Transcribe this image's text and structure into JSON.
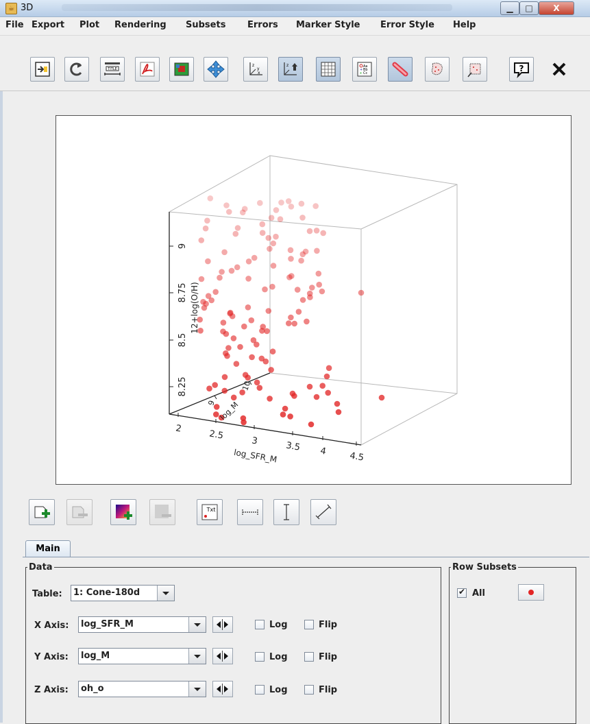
{
  "window": {
    "title": "3D",
    "app_icon": "java-coffee-icon"
  },
  "menu": [
    {
      "label": "File"
    },
    {
      "label": "Export"
    },
    {
      "label": "Plot"
    },
    {
      "label": "Rendering"
    },
    {
      "label": "Subsets"
    },
    {
      "label": "Errors"
    },
    {
      "label": "Marker Style"
    },
    {
      "label": "Error Style"
    },
    {
      "label": "Help"
    }
  ],
  "toolbar_icons": [
    "new-window-icon",
    "replot-icon",
    "title-icon",
    "pdf-export-icon",
    "image-export-icon",
    "rescale-icon",
    "axis-labels-icon",
    "axes-icon",
    "grid-icon",
    "legend-icon",
    "antialias-icon",
    "draw-subset-icon",
    "blob-subset-icon",
    "help-icon",
    "close-icon"
  ],
  "plot": {
    "xlabel": "log_SFR_M",
    "ylabel": "log_M",
    "zlabel": "12+log(O/H)",
    "x_ticks": [
      "2",
      "2.5",
      "3",
      "3.5",
      "4",
      "4.5"
    ],
    "y_ticks": [
      "9",
      "10"
    ],
    "z_ticks": [
      "8.25",
      "8.5",
      "8.75",
      "9"
    ],
    "marker_color": "#e22626"
  },
  "bottom_icons": [
    "add-dataset-icon",
    "remove-dataset-icon",
    "add-auxiliary-icon",
    "remove-auxiliary-icon",
    "text-label-icon",
    "x-range-icon",
    "y-range-icon",
    "xy-range-icon"
  ],
  "tab": {
    "label": "Main"
  },
  "data": {
    "legend": "Data",
    "table_label": "Table:",
    "table_value": "1: Cone-180d",
    "x_label": "X Axis:",
    "x_value": "log_SFR_M",
    "y_label": "Y Axis:",
    "y_value": "log_M",
    "z_label": "Z Axis:",
    "z_value": "oh_o",
    "log_label": "Log",
    "flip_label": "Flip"
  },
  "subsets": {
    "legend": "Row Subsets",
    "all_label": "All",
    "all_checked": true,
    "color": "#e22626"
  }
}
